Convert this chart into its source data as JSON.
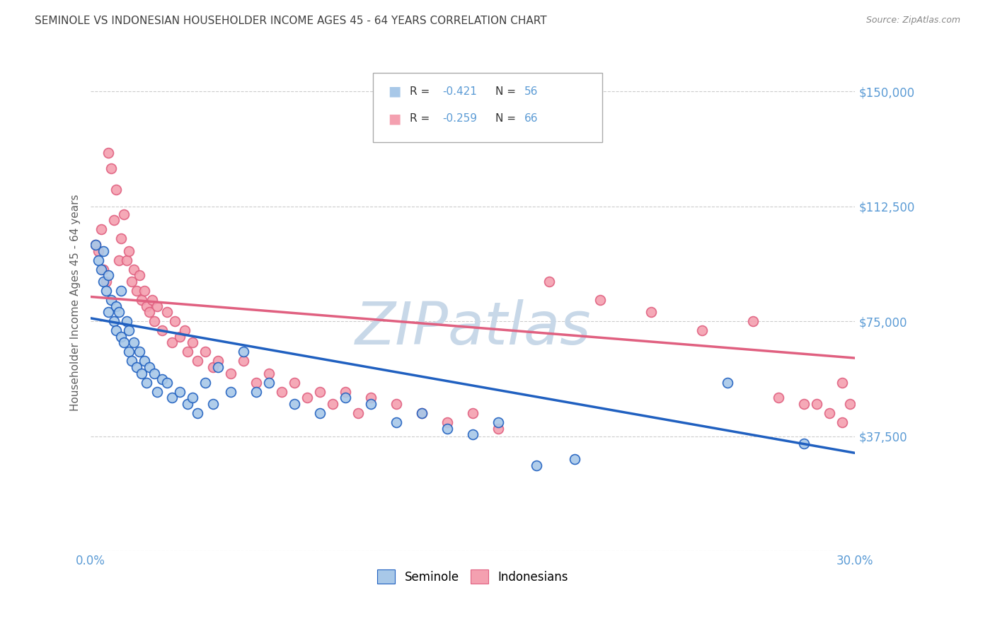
{
  "title": "SEMINOLE VS INDONESIAN HOUSEHOLDER INCOME AGES 45 - 64 YEARS CORRELATION CHART",
  "source": "Source: ZipAtlas.com",
  "ylabel": "Householder Income Ages 45 - 64 years",
  "x_min": 0.0,
  "x_max": 0.3,
  "y_min": 0,
  "y_max": 162000,
  "x_ticks": [
    0.0,
    0.05,
    0.1,
    0.15,
    0.2,
    0.25,
    0.3
  ],
  "y_ticks": [
    0,
    37500,
    75000,
    112500,
    150000
  ],
  "blue_color": "#a8c8e8",
  "pink_color": "#f4a0b0",
  "blue_line_color": "#2060c0",
  "pink_line_color": "#e06080",
  "watermark": "ZIPatlas",
  "legend_R_blue": "R = -0.421",
  "legend_N_blue": "N = 56",
  "legend_R_pink": "R = -0.259",
  "legend_N_pink": "N = 66",
  "legend_label_blue": "Seminole",
  "legend_label_pink": "Indonesians",
  "blue_scatter": [
    [
      0.002,
      100000
    ],
    [
      0.003,
      95000
    ],
    [
      0.004,
      92000
    ],
    [
      0.005,
      88000
    ],
    [
      0.005,
      98000
    ],
    [
      0.006,
      85000
    ],
    [
      0.007,
      90000
    ],
    [
      0.007,
      78000
    ],
    [
      0.008,
      82000
    ],
    [
      0.009,
      75000
    ],
    [
      0.01,
      80000
    ],
    [
      0.01,
      72000
    ],
    [
      0.011,
      78000
    ],
    [
      0.012,
      70000
    ],
    [
      0.012,
      85000
    ],
    [
      0.013,
      68000
    ],
    [
      0.014,
      75000
    ],
    [
      0.015,
      65000
    ],
    [
      0.015,
      72000
    ],
    [
      0.016,
      62000
    ],
    [
      0.017,
      68000
    ],
    [
      0.018,
      60000
    ],
    [
      0.019,
      65000
    ],
    [
      0.02,
      58000
    ],
    [
      0.021,
      62000
    ],
    [
      0.022,
      55000
    ],
    [
      0.023,
      60000
    ],
    [
      0.025,
      58000
    ],
    [
      0.026,
      52000
    ],
    [
      0.028,
      56000
    ],
    [
      0.03,
      55000
    ],
    [
      0.032,
      50000
    ],
    [
      0.035,
      52000
    ],
    [
      0.038,
      48000
    ],
    [
      0.04,
      50000
    ],
    [
      0.042,
      45000
    ],
    [
      0.045,
      55000
    ],
    [
      0.048,
      48000
    ],
    [
      0.05,
      60000
    ],
    [
      0.055,
      52000
    ],
    [
      0.06,
      65000
    ],
    [
      0.065,
      52000
    ],
    [
      0.07,
      55000
    ],
    [
      0.08,
      48000
    ],
    [
      0.09,
      45000
    ],
    [
      0.1,
      50000
    ],
    [
      0.11,
      48000
    ],
    [
      0.12,
      42000
    ],
    [
      0.13,
      45000
    ],
    [
      0.14,
      40000
    ],
    [
      0.15,
      38000
    ],
    [
      0.16,
      42000
    ],
    [
      0.175,
      28000
    ],
    [
      0.19,
      30000
    ],
    [
      0.25,
      55000
    ],
    [
      0.28,
      35000
    ]
  ],
  "pink_scatter": [
    [
      0.002,
      100000
    ],
    [
      0.003,
      98000
    ],
    [
      0.004,
      105000
    ],
    [
      0.005,
      92000
    ],
    [
      0.006,
      88000
    ],
    [
      0.007,
      130000
    ],
    [
      0.008,
      125000
    ],
    [
      0.009,
      108000
    ],
    [
      0.01,
      118000
    ],
    [
      0.011,
      95000
    ],
    [
      0.012,
      102000
    ],
    [
      0.013,
      110000
    ],
    [
      0.014,
      95000
    ],
    [
      0.015,
      98000
    ],
    [
      0.016,
      88000
    ],
    [
      0.017,
      92000
    ],
    [
      0.018,
      85000
    ],
    [
      0.019,
      90000
    ],
    [
      0.02,
      82000
    ],
    [
      0.021,
      85000
    ],
    [
      0.022,
      80000
    ],
    [
      0.023,
      78000
    ],
    [
      0.024,
      82000
    ],
    [
      0.025,
      75000
    ],
    [
      0.026,
      80000
    ],
    [
      0.028,
      72000
    ],
    [
      0.03,
      78000
    ],
    [
      0.032,
      68000
    ],
    [
      0.033,
      75000
    ],
    [
      0.035,
      70000
    ],
    [
      0.037,
      72000
    ],
    [
      0.038,
      65000
    ],
    [
      0.04,
      68000
    ],
    [
      0.042,
      62000
    ],
    [
      0.045,
      65000
    ],
    [
      0.048,
      60000
    ],
    [
      0.05,
      62000
    ],
    [
      0.055,
      58000
    ],
    [
      0.06,
      62000
    ],
    [
      0.065,
      55000
    ],
    [
      0.07,
      58000
    ],
    [
      0.075,
      52000
    ],
    [
      0.08,
      55000
    ],
    [
      0.085,
      50000
    ],
    [
      0.09,
      52000
    ],
    [
      0.095,
      48000
    ],
    [
      0.1,
      52000
    ],
    [
      0.105,
      45000
    ],
    [
      0.11,
      50000
    ],
    [
      0.12,
      48000
    ],
    [
      0.13,
      45000
    ],
    [
      0.14,
      42000
    ],
    [
      0.15,
      45000
    ],
    [
      0.16,
      40000
    ],
    [
      0.18,
      88000
    ],
    [
      0.2,
      82000
    ],
    [
      0.22,
      78000
    ],
    [
      0.24,
      72000
    ],
    [
      0.26,
      75000
    ],
    [
      0.27,
      50000
    ],
    [
      0.28,
      48000
    ],
    [
      0.285,
      48000
    ],
    [
      0.29,
      45000
    ],
    [
      0.295,
      42000
    ],
    [
      0.295,
      55000
    ],
    [
      0.298,
      48000
    ]
  ],
  "blue_trendline": [
    [
      0.0,
      76000
    ],
    [
      0.3,
      32000
    ]
  ],
  "pink_trendline": [
    [
      0.0,
      83000
    ],
    [
      0.3,
      63000
    ]
  ],
  "background_color": "#ffffff",
  "grid_color": "#cccccc",
  "title_color": "#404040",
  "axis_label_color": "#606060",
  "tick_color": "#5b9bd5",
  "watermark_color": "#c8d8e8"
}
